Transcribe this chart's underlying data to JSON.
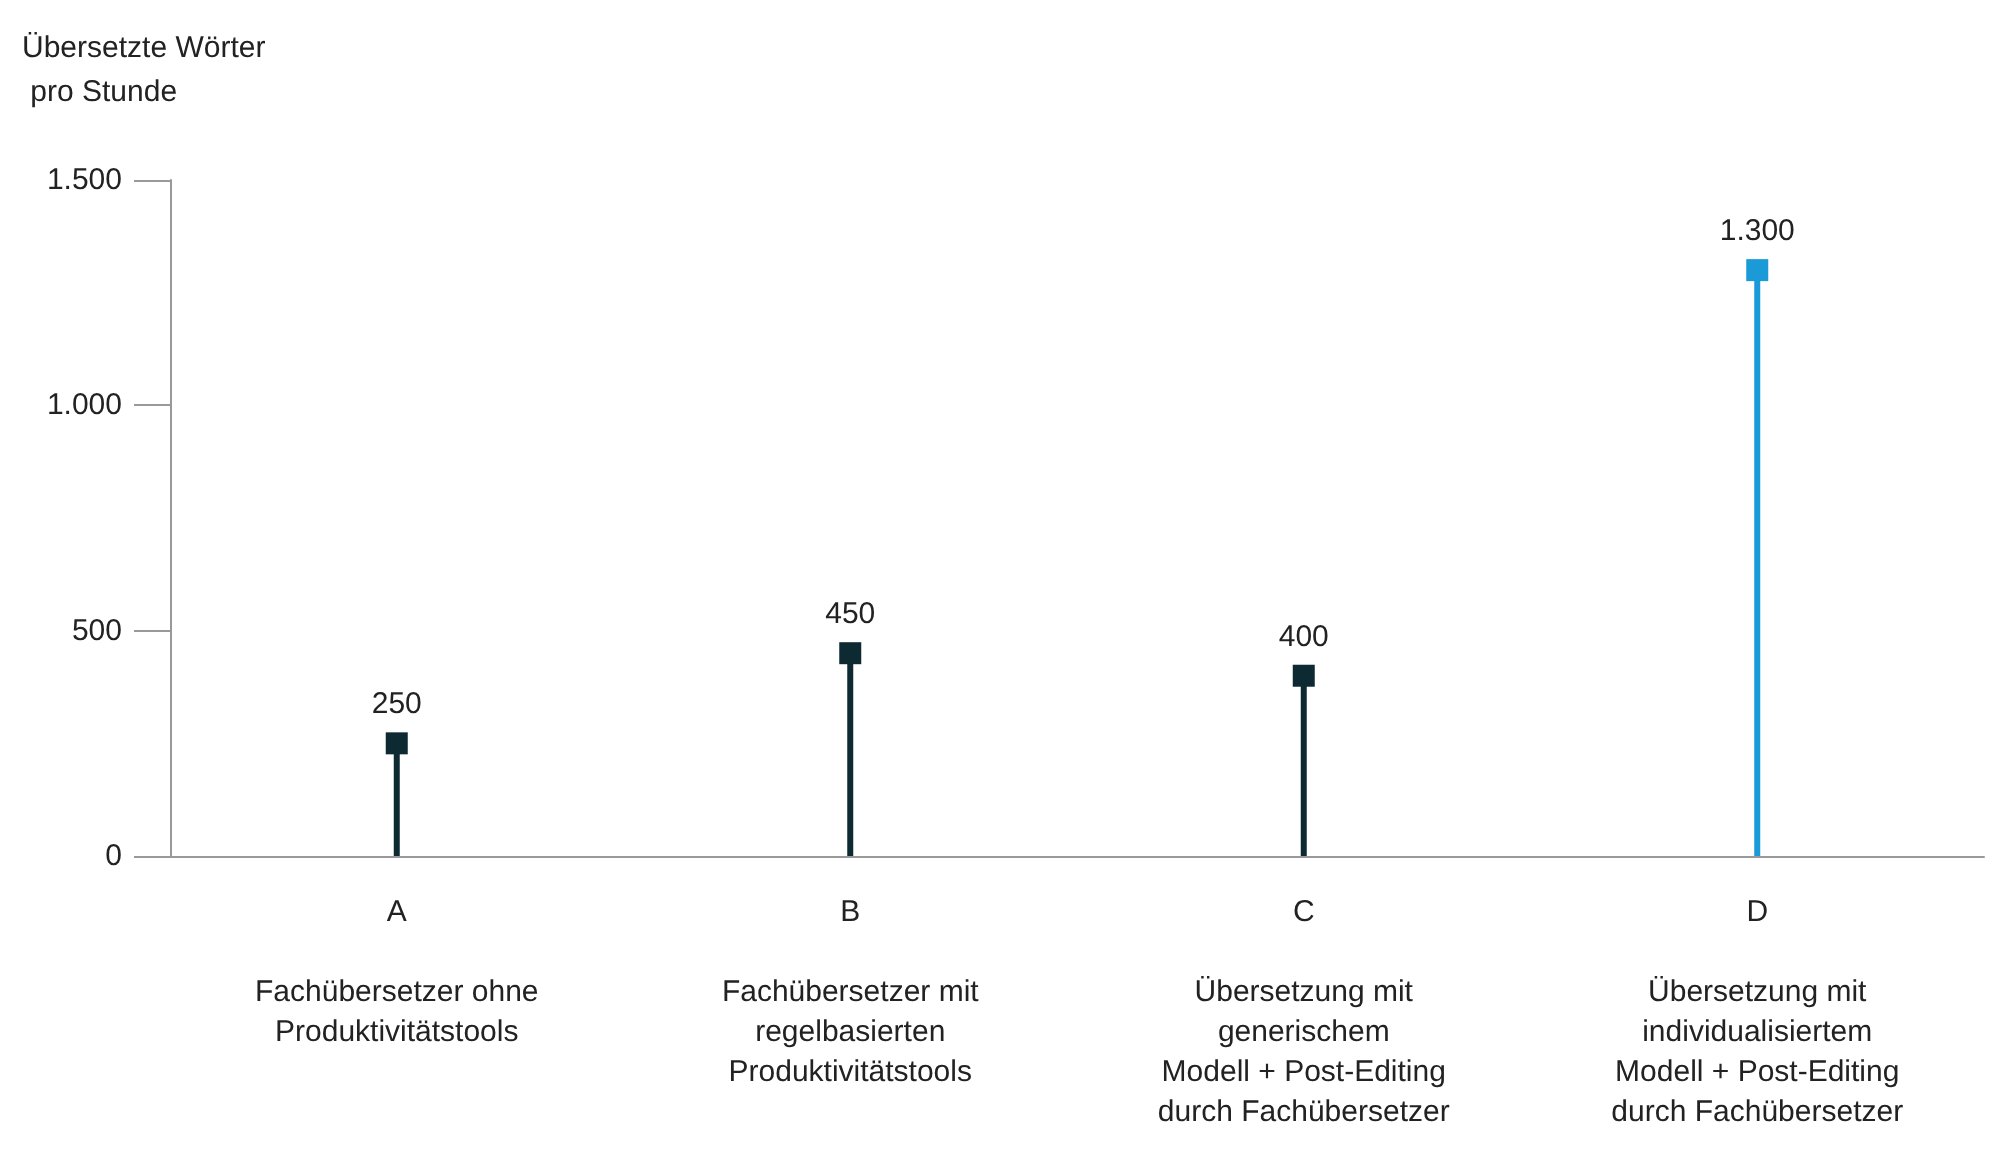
{
  "chart_data": {
    "type": "lollipop",
    "ylabel": "Übersetzte Wörter pro Stunde",
    "categories": [
      "A\n\nFachübersetzer ohne\nProduktivitätstools",
      "B\n\nFachübersetzer mit\nregelbasierten\nProduktivitätstools",
      "C\n\nÜbersetzung mit\ngenerischem\nModell + Post-Editing\ndurch Fachübersetzer",
      "D\n\nÜbersetzung mit\nindividualisiertem\nModell + Post-Editing\ndurch Fachübersetzer"
    ],
    "values": [
      250,
      450,
      400,
      1300
    ],
    "colors": [
      "#0d2a33",
      "#0d2a33",
      "#0d2a33",
      "#1a9ad6"
    ],
    "ylim": [
      0,
      1500
    ],
    "yticks": [
      0,
      {
        "value": 500,
        "label": "500"
      },
      {
        "value": 1000,
        "label": "1.000"
      },
      {
        "value": 1500,
        "label": "1.500"
      }
    ],
    "value_labels": [
      "250",
      "450",
      "400",
      "1.300"
    ],
    "marker": "square",
    "grid": false
  }
}
